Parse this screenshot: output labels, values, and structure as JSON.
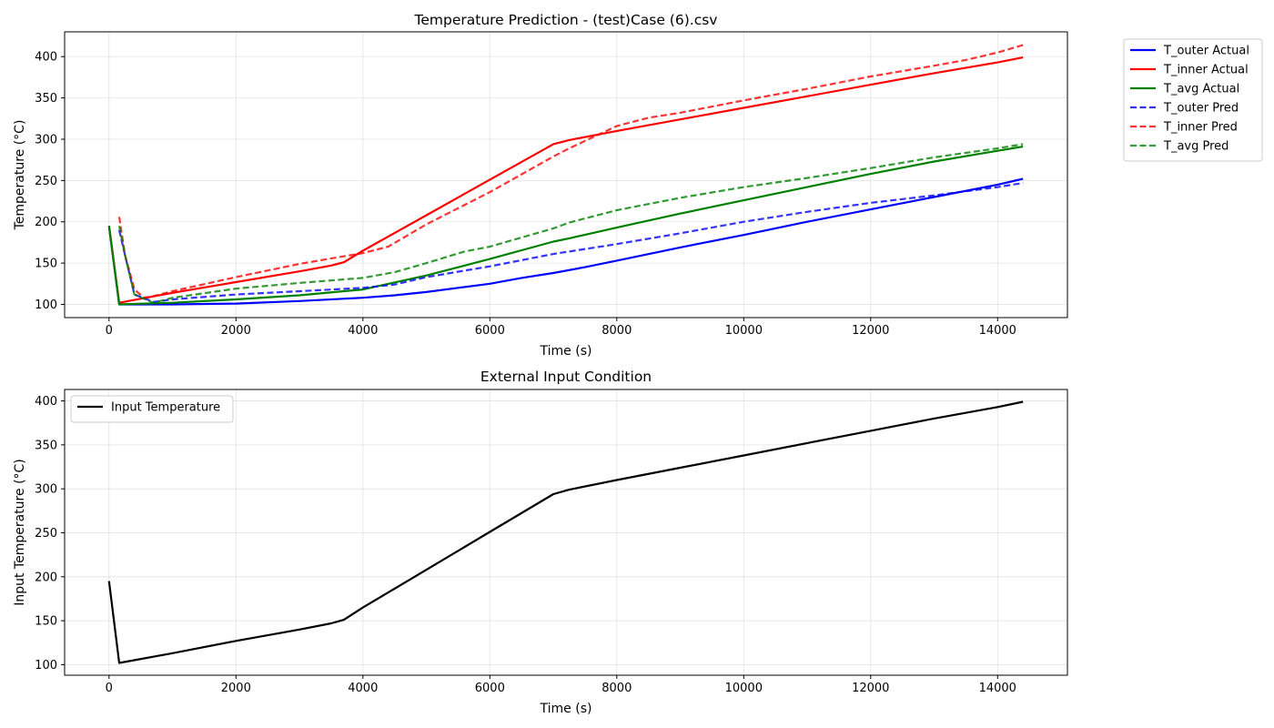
{
  "chart_data": [
    {
      "type": "line",
      "title": "Temperature Prediction - (test)Case (6).csv",
      "xlabel": "Time (s)",
      "ylabel": "Temperature (°C)",
      "xlim": [
        -700,
        15100
      ],
      "ylim": [
        84,
        430
      ],
      "xticks": [
        0,
        2000,
        4000,
        6000,
        8000,
        10000,
        12000,
        14000
      ],
      "yticks": [
        100,
        150,
        200,
        250,
        300,
        350,
        400
      ],
      "grid": true,
      "legend_position": "outside-top-right",
      "series": [
        {
          "name": "T_outer Actual",
          "color": "#0000ff",
          "dashed": false,
          "opacity": 1,
          "x": [
            0,
            160,
            500,
            1000,
            2000,
            3000,
            4000,
            4500,
            5000,
            5500,
            6000,
            6500,
            7000,
            7500,
            8000,
            9000,
            10000,
            11000,
            12000,
            13000,
            14000,
            14400
          ],
          "y": [
            195,
            100,
            100,
            100,
            101,
            104,
            108,
            111,
            115,
            120,
            125,
            132,
            138,
            145,
            153,
            169,
            184,
            200,
            215,
            230,
            245,
            252
          ]
        },
        {
          "name": "T_inner Actual",
          "color": "#ff0000",
          "dashed": false,
          "opacity": 1,
          "x": [
            0,
            160,
            1000,
            2000,
            3000,
            3500,
            3600,
            3700,
            4000,
            5000,
            6000,
            7000,
            7250,
            8000,
            9000,
            10000,
            11000,
            12000,
            13000,
            14000,
            14400
          ],
          "y": [
            195,
            102,
            114,
            127,
            140,
            147,
            149,
            151,
            165,
            208,
            251,
            294,
            299,
            310,
            324,
            338,
            352,
            366,
            380,
            393,
            399
          ]
        },
        {
          "name": "T_avg Actual",
          "color": "#008000",
          "dashed": false,
          "opacity": 1,
          "x": [
            0,
            160,
            1000,
            2000,
            3000,
            4000,
            5000,
            6000,
            7000,
            7250,
            8000,
            9000,
            10000,
            11000,
            12000,
            13000,
            14000,
            14400
          ],
          "y": [
            195,
            100,
            102,
            106,
            111,
            118,
            135,
            155,
            176,
            180,
            193,
            210,
            226,
            242,
            258,
            273,
            286,
            291
          ]
        },
        {
          "name": "T_outer Pred",
          "color": "#0000ff",
          "dashed": true,
          "opacity": 0.8,
          "x": [
            160,
            250,
            400,
            700,
            1000,
            2000,
            3000,
            4000,
            4500,
            5000,
            6000,
            7000,
            8000,
            9000,
            10000,
            11000,
            12000,
            13000,
            14000,
            14400
          ],
          "y": [
            190,
            160,
            112,
            103,
            106,
            112,
            116,
            120,
            124,
            133,
            146,
            161,
            173,
            186,
            200,
            212,
            223,
            232,
            242,
            247
          ]
        },
        {
          "name": "T_inner Pred",
          "color": "#ff0000",
          "dashed": true,
          "opacity": 0.8,
          "x": [
            160,
            250,
            400,
            550,
            700,
            1000,
            2000,
            3000,
            3600,
            4000,
            4400,
            5000,
            6000,
            7000,
            7250,
            8000,
            8500,
            9000,
            10000,
            11000,
            12000,
            13000,
            13500,
            14000,
            14400
          ],
          "y": [
            206,
            160,
            118,
            108,
            110,
            116,
            133,
            149,
            157,
            162,
            170,
            197,
            236,
            279,
            289,
            316,
            326,
            332,
            347,
            361,
            376,
            389,
            396,
            405,
            414
          ]
        },
        {
          "name": "T_avg Pred",
          "color": "#008000",
          "dashed": true,
          "opacity": 0.8,
          "x": [
            160,
            250,
            400,
            700,
            1000,
            2000,
            3000,
            4000,
            4500,
            5000,
            5600,
            6000,
            7000,
            7250,
            8000,
            9000,
            10000,
            11000,
            12000,
            13000,
            14000,
            14400
          ],
          "y": [
            195,
            160,
            112,
            102,
            108,
            119,
            126,
            132,
            139,
            150,
            164,
            170,
            192,
            199,
            214,
            229,
            242,
            253,
            265,
            278,
            289,
            294
          ]
        }
      ]
    },
    {
      "type": "line",
      "title": "External Input Condition",
      "xlabel": "Time (s)",
      "ylabel": "Input Temperature (°C)",
      "xlim": [
        -700,
        15100
      ],
      "ylim": [
        88,
        413
      ],
      "xticks": [
        0,
        2000,
        4000,
        6000,
        8000,
        10000,
        12000,
        14000
      ],
      "yticks": [
        100,
        150,
        200,
        250,
        300,
        350,
        400
      ],
      "grid": true,
      "legend_position": "upper-left",
      "series": [
        {
          "name": "Input Temperature",
          "color": "#000000",
          "dashed": false,
          "opacity": 1,
          "x": [
            0,
            160,
            1000,
            2000,
            3000,
            3500,
            3600,
            3700,
            4000,
            5000,
            6000,
            7000,
            7250,
            8000,
            9000,
            10000,
            11000,
            12000,
            13000,
            14000,
            14400
          ],
          "y": [
            195,
            102,
            113,
            127,
            140,
            147,
            149,
            151,
            165,
            208,
            251,
            294,
            299,
            310,
            324,
            338,
            352,
            366,
            380,
            393,
            399
          ]
        }
      ]
    }
  ]
}
